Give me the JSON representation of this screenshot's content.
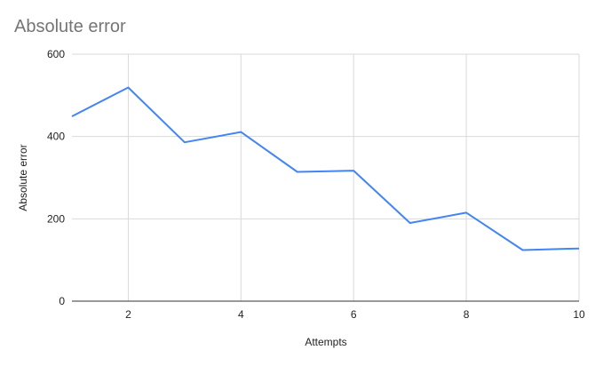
{
  "chart_data": {
    "type": "line",
    "title": "Absolute error",
    "xlabel": "Attempts",
    "ylabel": "Absolute error",
    "x": [
      1,
      2,
      3,
      4,
      5,
      6,
      7,
      8,
      9,
      10
    ],
    "series": [
      {
        "values": [
          449,
          519,
          386,
          411,
          314,
          317,
          190,
          215,
          124,
          128
        ]
      }
    ],
    "xlim": [
      1,
      10
    ],
    "ylim": [
      0,
      600
    ],
    "xticks": [
      "2",
      "4",
      "6",
      "8",
      "10"
    ],
    "yticks": [
      "0",
      "200",
      "400",
      "600"
    ],
    "grid": true,
    "legend": "none",
    "colors": {
      "line": "#4285f4",
      "grid": "#d9d9d9",
      "axis": "#333333"
    }
  }
}
